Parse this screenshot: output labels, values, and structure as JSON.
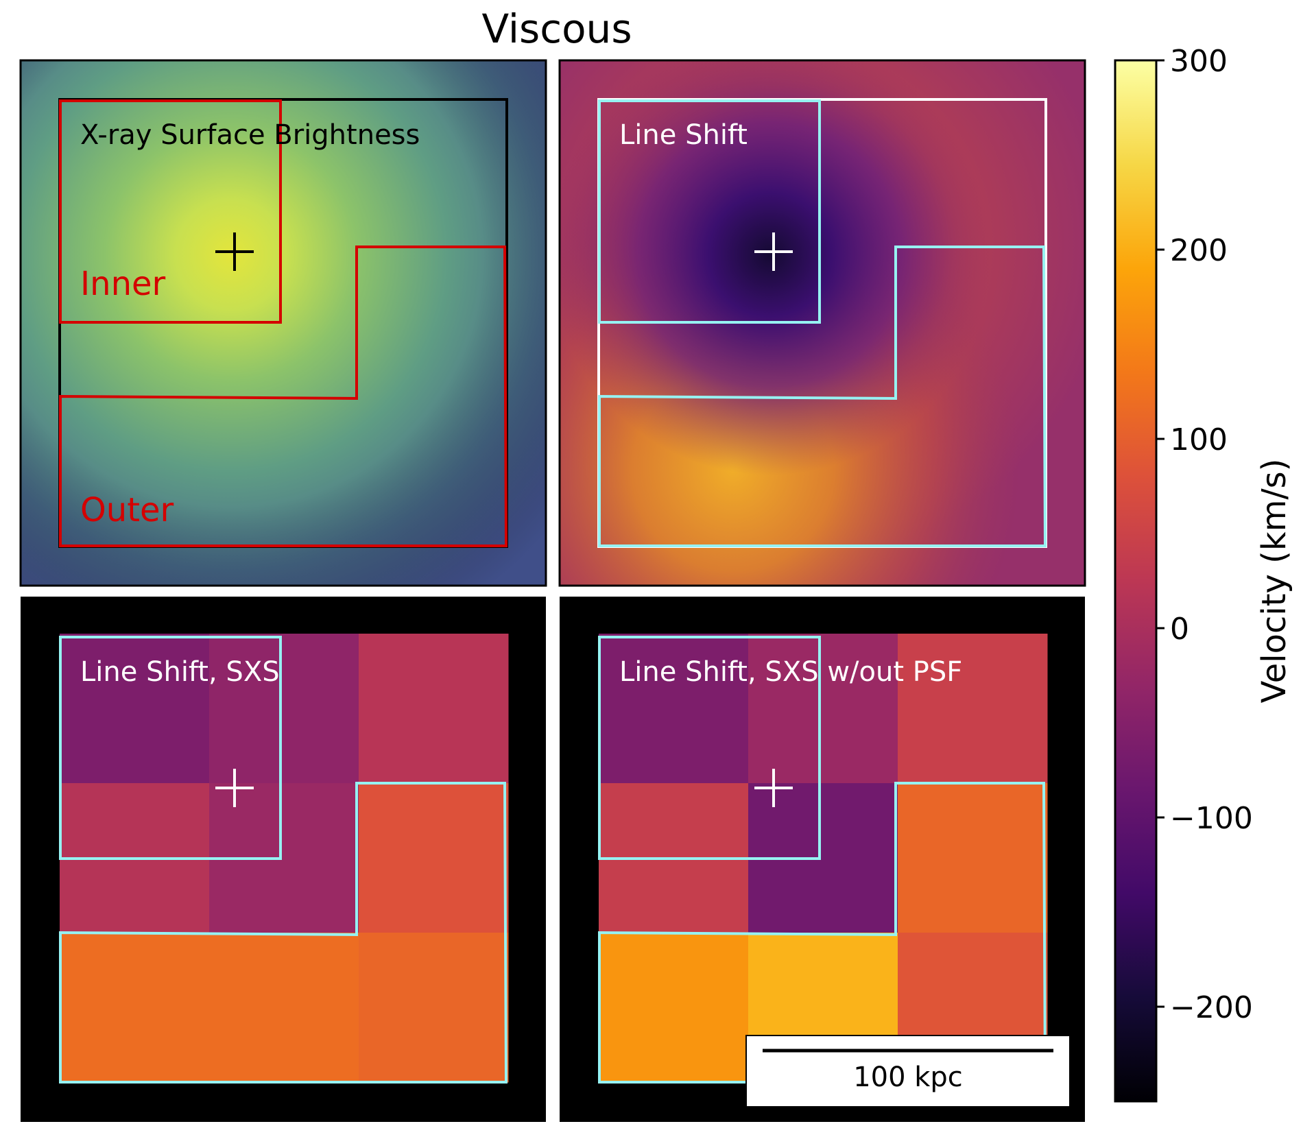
{
  "figure": {
    "title": "Viscous",
    "scale_bar_label": "100 kpc"
  },
  "panels": [
    {
      "id": "xray",
      "label": "X-ray Surface Brightness",
      "label_color": "#000000",
      "region_labels": {
        "inner": "Inner",
        "outer": "Outer"
      },
      "region_color": "#d40000",
      "extent_color": "#000000",
      "center_color": "#000000"
    },
    {
      "id": "shift",
      "label": "Line Shift",
      "label_color": "#ffffff",
      "region_color": "#96f2f2",
      "extent_color": "#ffffff",
      "center_color": "#ffffff"
    },
    {
      "id": "sxs",
      "label": "Line Shift, SXS",
      "label_color": "#ffffff",
      "region_color": "#96f2f2",
      "center_color": "#ffffff"
    },
    {
      "id": "sxs_nopsf",
      "label": "Line Shift, SXS w/out PSF",
      "label_color": "#ffffff",
      "region_color": "#96f2f2",
      "center_color": "#ffffff"
    }
  ],
  "chart_data": {
    "type": "heatmap",
    "title": "Viscous",
    "colorbar": {
      "label": "Velocity (km/s)",
      "colormap": "inferno",
      "range": [
        -250,
        300
      ],
      "ticks": [
        300,
        200,
        100,
        0,
        -100,
        -200
      ],
      "tick_labels": [
        "300",
        "200",
        "100",
        "0",
        "−100",
        "−200"
      ]
    },
    "sxs_grid_velocity_kms": [
      [
        -60,
        -35,
        20
      ],
      [
        15,
        -20,
        80
      ],
      [
        120,
        120,
        110
      ]
    ],
    "sxs_nopsf_grid_velocity_kms": [
      [
        -60,
        -20,
        45
      ],
      [
        40,
        -75,
        110
      ],
      [
        170,
        205,
        85
      ]
    ]
  }
}
